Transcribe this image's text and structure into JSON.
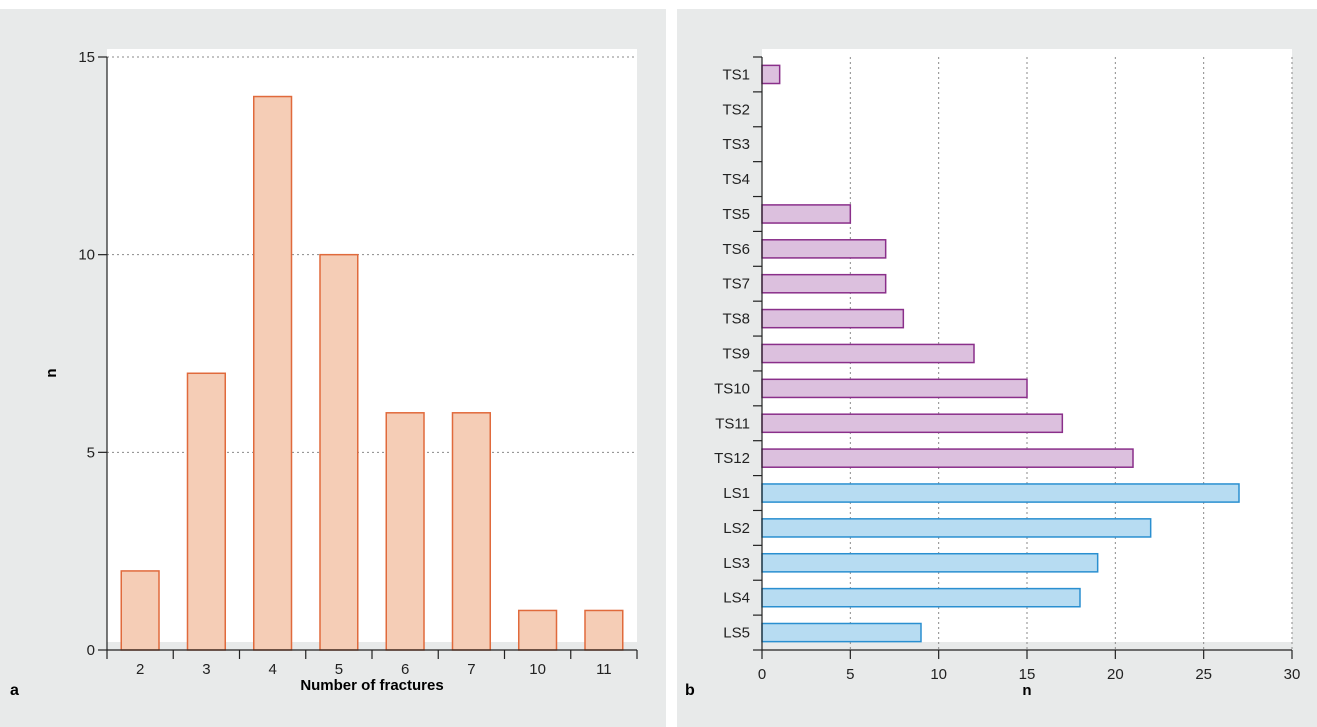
{
  "chart_data": [
    {
      "type": "bar",
      "panel_label": "a",
      "categories": [
        "2",
        "3",
        "4",
        "5",
        "6",
        "7",
        "10",
        "11"
      ],
      "values": [
        2,
        7,
        14,
        10,
        6,
        6,
        1,
        1
      ],
      "title": "",
      "xlabel": "Number of fractures",
      "ylabel": "n",
      "ylim": [
        0,
        15
      ],
      "yticks": [
        0,
        5,
        10,
        15
      ],
      "grid": "horizontal dotted",
      "legend": "none",
      "colors": {
        "fill": "#f5cdb6",
        "stroke": "#e06a3c"
      }
    },
    {
      "type": "bar",
      "orientation": "horizontal",
      "panel_label": "b",
      "categories": [
        "TS1",
        "TS2",
        "TS3",
        "TS4",
        "TS5",
        "TS6",
        "TS7",
        "TS8",
        "TS9",
        "TS10",
        "TS11",
        "TS12",
        "LS1",
        "LS2",
        "LS3",
        "LS4",
        "LS5"
      ],
      "values": [
        1,
        0,
        0,
        0,
        5,
        7,
        7,
        8,
        12,
        15,
        17,
        21,
        27,
        22,
        19,
        18,
        9
      ],
      "groups": [
        "TS",
        "TS",
        "TS",
        "TS",
        "TS",
        "TS",
        "TS",
        "TS",
        "TS",
        "TS",
        "TS",
        "TS",
        "LS",
        "LS",
        "LS",
        "LS",
        "LS"
      ],
      "title": "",
      "xlabel": "n",
      "ylabel": "",
      "xlim": [
        0,
        30
      ],
      "xticks": [
        0,
        5,
        10,
        15,
        20,
        25,
        30
      ],
      "grid": "vertical dotted",
      "legend": "none",
      "colors": {
        "TS": {
          "fill": "#dcc0de",
          "stroke": "#8a2f8a"
        },
        "LS": {
          "fill": "#b7dcf2",
          "stroke": "#2a8fd0"
        }
      }
    }
  ]
}
